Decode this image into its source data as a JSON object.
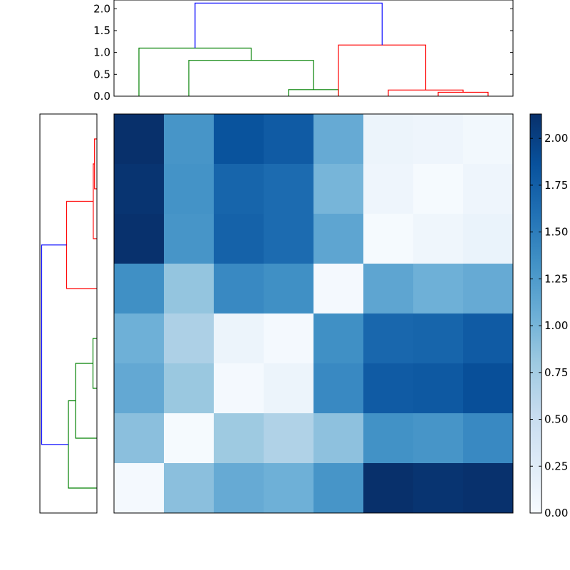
{
  "chart_data": [
    {
      "type": "dendrogram",
      "panel": "top",
      "ylim": [
        0,
        2.2
      ],
      "yticks": [
        "0.0",
        "0.5",
        "1.0",
        "1.5",
        "2.0"
      ],
      "yticks_values": [
        0,
        0.5,
        1.0,
        1.5,
        2.0
      ],
      "xlim": [
        0,
        80
      ],
      "links": [
        {
          "x": [
            35,
            35,
            45,
            45
          ],
          "y": [
            0,
            0.15,
            0.15,
            0
          ],
          "color": "#008000"
        },
        {
          "x": [
            15,
            15,
            40,
            40
          ],
          "y": [
            0,
            0.82,
            0.82,
            0.15
          ],
          "color": "#008000"
        },
        {
          "x": [
            5,
            5,
            27.5,
            27.5
          ],
          "y": [
            0,
            1.1,
            1.1,
            0.82
          ],
          "color": "#008000"
        },
        {
          "x": [
            65,
            65,
            75,
            75
          ],
          "y": [
            0,
            0.09,
            0.09,
            0
          ],
          "color": "#ff0000"
        },
        {
          "x": [
            55,
            55,
            70,
            70
          ],
          "y": [
            0,
            0.14,
            0.14,
            0.09
          ],
          "color": "#ff0000"
        },
        {
          "x": [
            45,
            45,
            62.5,
            62.5
          ],
          "y": [
            0,
            1.17,
            1.17,
            0.14
          ],
          "color": "#ff0000"
        },
        {
          "x": [
            16.25,
            16.25,
            53.75,
            53.75
          ],
          "y": [
            1.1,
            2.13,
            2.13,
            1.17
          ],
          "color": "#0000ff"
        }
      ]
    },
    {
      "type": "dendrogram",
      "panel": "left",
      "orientation": "left",
      "xlim": [
        0,
        2.2
      ],
      "ylim": [
        0,
        80
      ],
      "links": [
        {
          "y": [
            65,
            65,
            75,
            75
          ],
          "d": [
            0,
            0.09,
            0.09,
            0
          ],
          "color": "#ff0000"
        },
        {
          "y": [
            55,
            55,
            70,
            70
          ],
          "d": [
            0,
            0.14,
            0.14,
            0.09
          ],
          "color": "#ff0000"
        },
        {
          "y": [
            45,
            45,
            62.5,
            62.5
          ],
          "d": [
            0,
            1.17,
            1.17,
            0.14
          ],
          "color": "#ff0000"
        },
        {
          "y": [
            25,
            25,
            35,
            35
          ],
          "d": [
            0,
            0.15,
            0.15,
            0
          ],
          "color": "#008000"
        },
        {
          "y": [
            15,
            15,
            30,
            30
          ],
          "d": [
            0,
            0.82,
            0.82,
            0.15
          ],
          "color": "#008000"
        },
        {
          "y": [
            5,
            5,
            22.5,
            22.5
          ],
          "d": [
            0,
            1.1,
            1.1,
            0.82
          ],
          "color": "#008000"
        },
        {
          "y": [
            13.75,
            13.75,
            53.75,
            53.75
          ],
          "d": [
            1.1,
            2.13,
            2.13,
            1.17
          ],
          "color": "#0000ff"
        }
      ]
    },
    {
      "type": "heatmap",
      "colormap": "Blues",
      "vmin": 0,
      "vmax": 2.13,
      "rows": 8,
      "cols": 8,
      "values": [
        [
          2.13,
          1.3,
          1.85,
          1.78,
          1.1,
          0.12,
          0.1,
          0.05
        ],
        [
          2.1,
          1.32,
          1.7,
          1.65,
          1.0,
          0.1,
          0.02,
          0.1
        ],
        [
          2.12,
          1.3,
          1.72,
          1.65,
          1.15,
          0.02,
          0.09,
          0.14
        ],
        [
          1.35,
          0.85,
          1.4,
          1.35,
          0.03,
          1.15,
          1.05,
          1.1
        ],
        [
          1.05,
          0.7,
          0.12,
          0.03,
          1.35,
          1.68,
          1.7,
          1.78
        ],
        [
          1.12,
          0.82,
          0.03,
          0.12,
          1.4,
          1.78,
          1.8,
          1.88
        ],
        [
          0.9,
          0.02,
          0.8,
          0.68,
          0.88,
          1.33,
          1.3,
          1.4
        ],
        [
          0.03,
          0.9,
          1.1,
          1.05,
          1.3,
          2.13,
          2.1,
          2.12
        ]
      ]
    },
    {
      "type": "colorbar",
      "ticks": [
        "0.00",
        "0.25",
        "0.50",
        "0.75",
        "1.00",
        "1.25",
        "1.50",
        "1.75",
        "2.00"
      ],
      "ticks_values": [
        0,
        0.25,
        0.5,
        0.75,
        1.0,
        1.25,
        1.5,
        1.75,
        2.0
      ],
      "vmin": 0,
      "vmax": 2.13
    }
  ]
}
